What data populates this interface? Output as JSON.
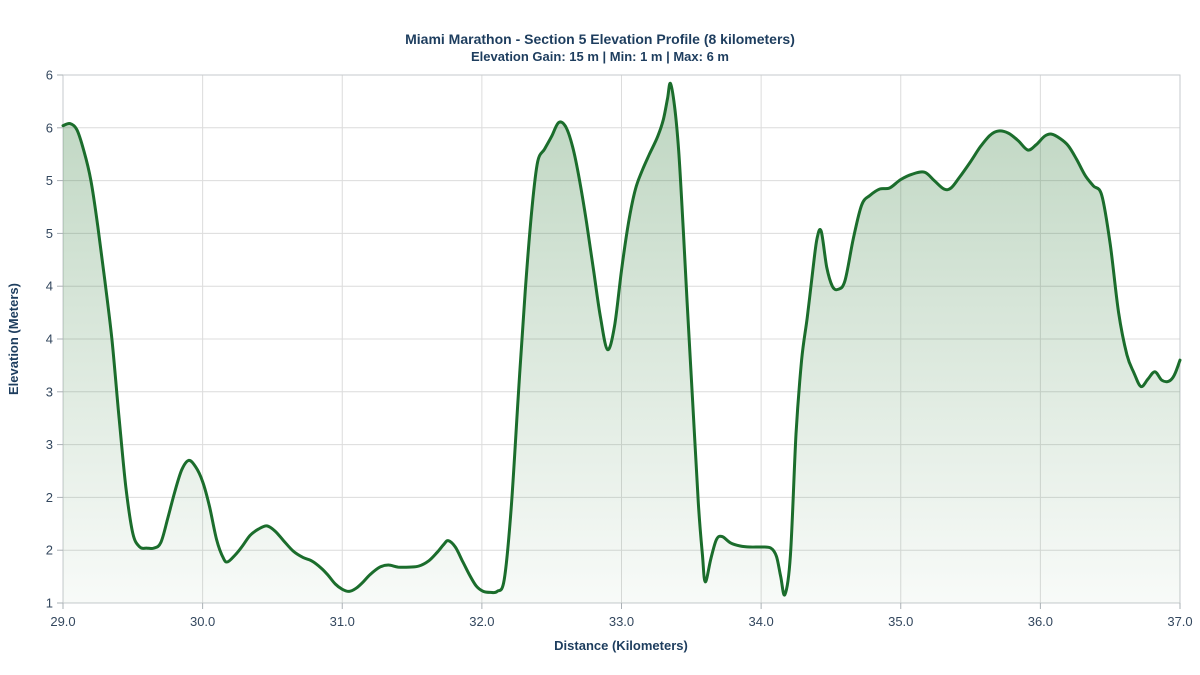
{
  "title": "Miami Marathon - Section 5 Elevation Profile (8 kilometers)",
  "subtitle": "Elevation Gain: 15 m | Min: 1 m | Max: 6 m",
  "colors": {
    "title": "#1d3d5e",
    "tick_label": "#33475e",
    "grid": "#dcdcdc",
    "axis_border": "#c6cacc",
    "tick_mark": "#aab0b5",
    "line": "#1b6d2c",
    "fill_top": "rgba(35,115,45,0.30)",
    "fill_bottom": "rgba(35,115,45,0.03)"
  },
  "chart_data": {
    "type": "area",
    "title": "Miami Marathon - Section 5 Elevation Profile (8 kilometers)",
    "subtitle": "Elevation Gain: 15 m | Min: 1 m | Max: 6 m",
    "xlabel": "Distance (Kilometers)",
    "ylabel": "Elevation (Meters)",
    "x_range": [
      29.0,
      37.0
    ],
    "y_range": [
      1.0,
      6.0
    ],
    "grid": true,
    "legend": "none",
    "x_ticks": [
      {
        "value": 29.0,
        "label": "29.0"
      },
      {
        "value": 30.0,
        "label": "30.0"
      },
      {
        "value": 31.0,
        "label": "31.0"
      },
      {
        "value": 32.0,
        "label": "32.0"
      },
      {
        "value": 33.0,
        "label": "33.0"
      },
      {
        "value": 34.0,
        "label": "34.0"
      },
      {
        "value": 35.0,
        "label": "35.0"
      },
      {
        "value": 36.0,
        "label": "36.0"
      },
      {
        "value": 37.0,
        "label": "37.0"
      }
    ],
    "y_ticks": [
      {
        "value": 1.0,
        "label": "1"
      },
      {
        "value": 1.5,
        "label": "2"
      },
      {
        "value": 2.0,
        "label": "2"
      },
      {
        "value": 2.5,
        "label": "3"
      },
      {
        "value": 3.0,
        "label": "3"
      },
      {
        "value": 3.5,
        "label": "4"
      },
      {
        "value": 4.0,
        "label": "4"
      },
      {
        "value": 4.5,
        "label": "5"
      },
      {
        "value": 5.0,
        "label": "5"
      },
      {
        "value": 5.5,
        "label": "6"
      },
      {
        "value": 6.0,
        "label": "6"
      }
    ],
    "series": [
      {
        "name": "elevation-profile",
        "points": [
          [
            29.0,
            5.52
          ],
          [
            29.05,
            5.54
          ],
          [
            29.1,
            5.48
          ],
          [
            29.15,
            5.28
          ],
          [
            29.2,
            5.0
          ],
          [
            29.25,
            4.56
          ],
          [
            29.3,
            4.05
          ],
          [
            29.35,
            3.5
          ],
          [
            29.4,
            2.78
          ],
          [
            29.45,
            2.1
          ],
          [
            29.5,
            1.66
          ],
          [
            29.55,
            1.53
          ],
          [
            29.6,
            1.52
          ],
          [
            29.65,
            1.52
          ],
          [
            29.7,
            1.57
          ],
          [
            29.75,
            1.8
          ],
          [
            29.8,
            2.05
          ],
          [
            29.85,
            2.26
          ],
          [
            29.9,
            2.35
          ],
          [
            29.95,
            2.29
          ],
          [
            30.0,
            2.15
          ],
          [
            30.05,
            1.91
          ],
          [
            30.1,
            1.6
          ],
          [
            30.15,
            1.42
          ],
          [
            30.18,
            1.39
          ],
          [
            30.23,
            1.45
          ],
          [
            30.28,
            1.53
          ],
          [
            30.34,
            1.64
          ],
          [
            30.4,
            1.7
          ],
          [
            30.46,
            1.73
          ],
          [
            30.52,
            1.68
          ],
          [
            30.58,
            1.59
          ],
          [
            30.65,
            1.49
          ],
          [
            30.72,
            1.43
          ],
          [
            30.78,
            1.4
          ],
          [
            30.85,
            1.33
          ],
          [
            30.9,
            1.26
          ],
          [
            30.95,
            1.18
          ],
          [
            31.0,
            1.13
          ],
          [
            31.05,
            1.11
          ],
          [
            31.1,
            1.14
          ],
          [
            31.15,
            1.2
          ],
          [
            31.2,
            1.27
          ],
          [
            31.27,
            1.34
          ],
          [
            31.33,
            1.36
          ],
          [
            31.4,
            1.34
          ],
          [
            31.48,
            1.34
          ],
          [
            31.55,
            1.35
          ],
          [
            31.62,
            1.4
          ],
          [
            31.68,
            1.48
          ],
          [
            31.73,
            1.56
          ],
          [
            31.76,
            1.59
          ],
          [
            31.81,
            1.53
          ],
          [
            31.86,
            1.4
          ],
          [
            31.91,
            1.27
          ],
          [
            31.96,
            1.16
          ],
          [
            32.01,
            1.11
          ],
          [
            32.06,
            1.1
          ],
          [
            32.11,
            1.11
          ],
          [
            32.16,
            1.22
          ],
          [
            32.21,
            1.9
          ],
          [
            32.26,
            2.95
          ],
          [
            32.31,
            3.95
          ],
          [
            32.36,
            4.75
          ],
          [
            32.4,
            5.18
          ],
          [
            32.45,
            5.3
          ],
          [
            32.5,
            5.42
          ],
          [
            32.55,
            5.55
          ],
          [
            32.6,
            5.51
          ],
          [
            32.65,
            5.32
          ],
          [
            32.7,
            5.0
          ],
          [
            32.75,
            4.6
          ],
          [
            32.8,
            4.15
          ],
          [
            32.85,
            3.7
          ],
          [
            32.9,
            3.4
          ],
          [
            32.95,
            3.62
          ],
          [
            33.0,
            4.15
          ],
          [
            33.05,
            4.6
          ],
          [
            33.1,
            4.92
          ],
          [
            33.15,
            5.1
          ],
          [
            33.2,
            5.25
          ],
          [
            33.26,
            5.42
          ],
          [
            33.3,
            5.58
          ],
          [
            33.33,
            5.78
          ],
          [
            33.35,
            5.92
          ],
          [
            33.38,
            5.7
          ],
          [
            33.41,
            5.28
          ],
          [
            33.44,
            4.6
          ],
          [
            33.47,
            3.85
          ],
          [
            33.51,
            2.9
          ],
          [
            33.55,
            1.95
          ],
          [
            33.58,
            1.45
          ],
          [
            33.6,
            1.2
          ],
          [
            33.64,
            1.42
          ],
          [
            33.68,
            1.6
          ],
          [
            33.72,
            1.63
          ],
          [
            33.78,
            1.57
          ],
          [
            33.85,
            1.54
          ],
          [
            33.92,
            1.53
          ],
          [
            34.0,
            1.53
          ],
          [
            34.07,
            1.52
          ],
          [
            34.11,
            1.44
          ],
          [
            34.14,
            1.25
          ],
          [
            34.17,
            1.08
          ],
          [
            34.21,
            1.45
          ],
          [
            34.25,
            2.6
          ],
          [
            34.29,
            3.3
          ],
          [
            34.33,
            3.7
          ],
          [
            34.37,
            4.15
          ],
          [
            34.4,
            4.45
          ],
          [
            34.43,
            4.52
          ],
          [
            34.47,
            4.18
          ],
          [
            34.51,
            4.0
          ],
          [
            34.55,
            3.97
          ],
          [
            34.6,
            4.05
          ],
          [
            34.66,
            4.45
          ],
          [
            34.72,
            4.77
          ],
          [
            34.78,
            4.86
          ],
          [
            34.85,
            4.92
          ],
          [
            34.92,
            4.93
          ],
          [
            35.0,
            5.01
          ],
          [
            35.08,
            5.06
          ],
          [
            35.17,
            5.08
          ],
          [
            35.24,
            5.0
          ],
          [
            35.31,
            4.92
          ],
          [
            35.36,
            4.93
          ],
          [
            35.42,
            5.03
          ],
          [
            35.5,
            5.18
          ],
          [
            35.57,
            5.32
          ],
          [
            35.64,
            5.43
          ],
          [
            35.7,
            5.47
          ],
          [
            35.77,
            5.45
          ],
          [
            35.84,
            5.38
          ],
          [
            35.91,
            5.29
          ],
          [
            35.97,
            5.34
          ],
          [
            36.03,
            5.42
          ],
          [
            36.08,
            5.44
          ],
          [
            36.14,
            5.4
          ],
          [
            36.2,
            5.33
          ],
          [
            36.26,
            5.2
          ],
          [
            36.32,
            5.05
          ],
          [
            36.38,
            4.95
          ],
          [
            36.44,
            4.86
          ],
          [
            36.5,
            4.4
          ],
          [
            36.56,
            3.75
          ],
          [
            36.62,
            3.35
          ],
          [
            36.67,
            3.18
          ],
          [
            36.72,
            3.05
          ],
          [
            36.77,
            3.12
          ],
          [
            36.82,
            3.19
          ],
          [
            36.87,
            3.11
          ],
          [
            36.92,
            3.1
          ],
          [
            36.96,
            3.16
          ],
          [
            37.0,
            3.3
          ]
        ]
      }
    ]
  }
}
